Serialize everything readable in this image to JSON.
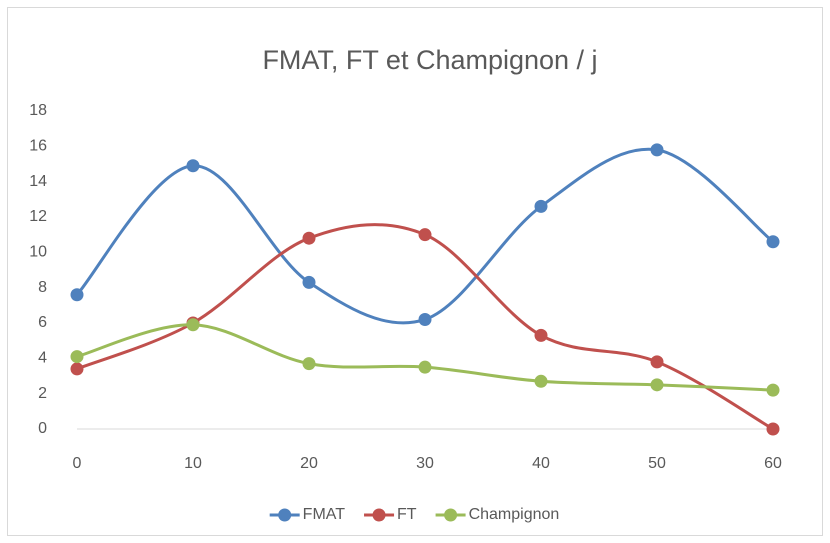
{
  "chart_data": {
    "type": "line",
    "title": "FMAT, FT et Champignon / j",
    "x": [
      0,
      10,
      20,
      30,
      40,
      50,
      60
    ],
    "series": [
      {
        "name": "FMAT",
        "color": "#4f81bd",
        "values": [
          7.6,
          14.9,
          8.3,
          6.2,
          12.6,
          15.8,
          10.6
        ]
      },
      {
        "name": "FT",
        "color": "#c0504d",
        "values": [
          3.4,
          6.0,
          10.8,
          11.0,
          5.3,
          3.8,
          0
        ]
      },
      {
        "name": "Champignon",
        "color": "#9bbb59",
        "values": [
          4.1,
          5.9,
          3.7,
          3.5,
          2.7,
          2.5,
          2.2
        ]
      }
    ],
    "xlim": [
      0,
      60
    ],
    "xticks": [
      0,
      10,
      20,
      30,
      40,
      50,
      60
    ],
    "ylim": [
      0,
      18
    ],
    "yticks": [
      0,
      2,
      4,
      6,
      8,
      10,
      12,
      14,
      16,
      18
    ],
    "grid": false,
    "smooth": true,
    "legend": "bottom"
  }
}
